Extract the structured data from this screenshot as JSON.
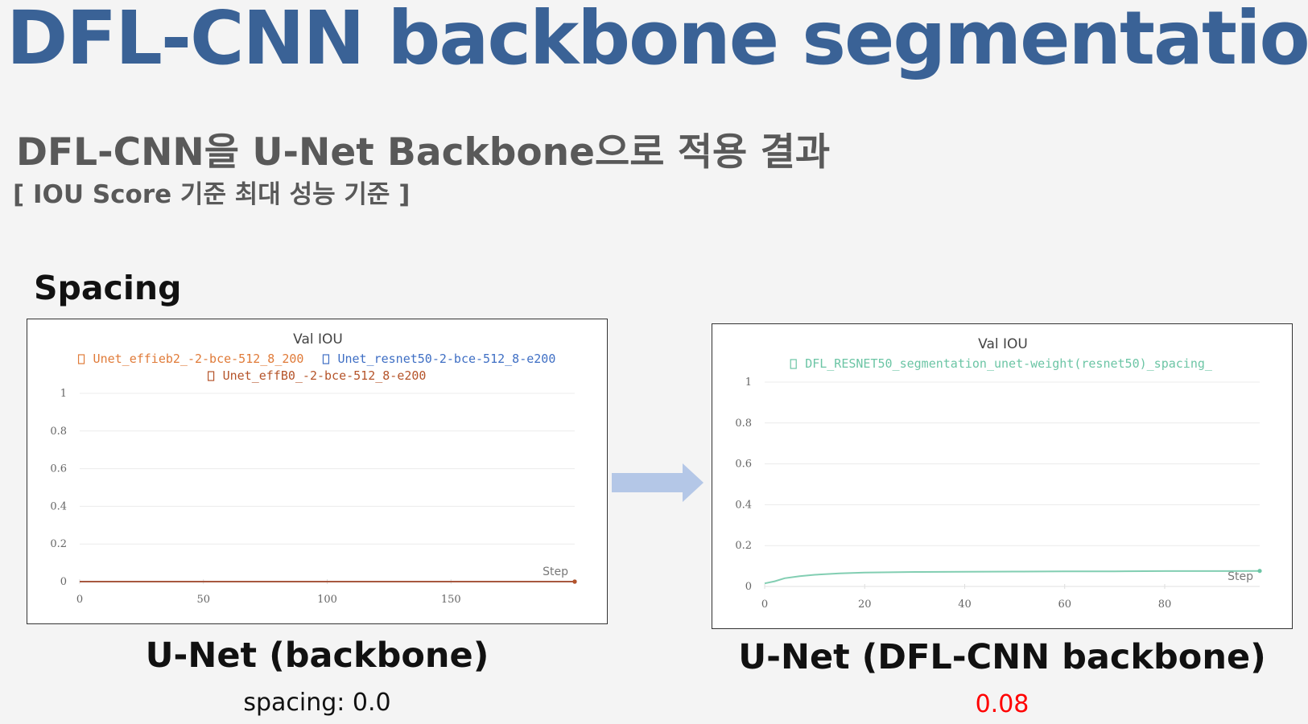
{
  "header": {
    "title": "DFL-CNN backbone segmentation",
    "subtitle": "DFL-CNN을 U-Net Backbone으로 적용 결과",
    "note": "[ IOU Score 기준 최대 성능 기준 ]"
  },
  "section": {
    "label": "Spacing"
  },
  "captions": {
    "left": {
      "label": "U-Net (backbone)",
      "value": "spacing: 0.0"
    },
    "right": {
      "label": "U-Net (DFL-CNN backbone)",
      "value": "0.08",
      "value_color": "#ff0000"
    }
  },
  "colors": {
    "title": "#3a6296",
    "arrow": "#b4c7e7"
  },
  "chart_data": [
    {
      "type": "line",
      "title": "Val IOU",
      "xlabel": "Step",
      "ylabel": "",
      "xlim": [
        0,
        200
      ],
      "ylim": [
        0,
        1
      ],
      "xticks": [
        0,
        50,
        100,
        150
      ],
      "yticks": [
        0,
        0.2,
        0.4,
        0.6,
        0.8,
        1
      ],
      "grid": true,
      "legend_placement": "top",
      "series": [
        {
          "name": "Unet_effieb2_-2-bce-512_8_200",
          "color": "#e07b39",
          "x": [
            0,
            200
          ],
          "y": [
            0,
            0
          ]
        },
        {
          "name": "Unet_resnet50-2-bce-512_8-e200",
          "color": "#3f6fc4",
          "x": [
            0,
            200
          ],
          "y": [
            0,
            0
          ]
        },
        {
          "name": "Unet_effB0_-2-bce-512_8-e200",
          "color": "#b5542a",
          "x": [
            0,
            200
          ],
          "y": [
            0,
            0
          ]
        }
      ]
    },
    {
      "type": "line",
      "title": "Val IOU",
      "xlabel": "Step",
      "ylabel": "",
      "xlim": [
        0,
        99
      ],
      "ylim": [
        0,
        1
      ],
      "xticks": [
        0,
        20,
        40,
        60,
        80
      ],
      "yticks": [
        0,
        0.2,
        0.4,
        0.6,
        0.8,
        1
      ],
      "grid": true,
      "legend_placement": "top",
      "series": [
        {
          "name": "DFL_RESNET50_segmentation_unet-weight(resnet50)_spacing_",
          "color": "#6cc5a5",
          "x": [
            0,
            2,
            4,
            7,
            10,
            15,
            20,
            30,
            40,
            50,
            60,
            70,
            80,
            90,
            99
          ],
          "y": [
            0.015,
            0.025,
            0.04,
            0.05,
            0.057,
            0.064,
            0.068,
            0.071,
            0.072,
            0.073,
            0.074,
            0.074,
            0.075,
            0.075,
            0.076
          ]
        }
      ]
    }
  ]
}
